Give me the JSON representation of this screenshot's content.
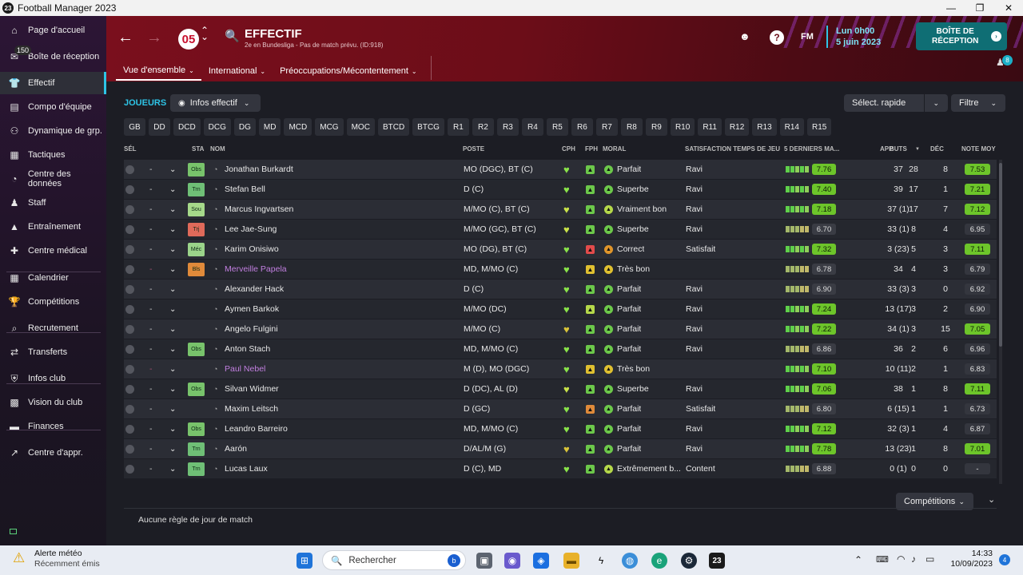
{
  "window": {
    "title": "Football Manager 2023",
    "app_badge": "23"
  },
  "sidebar": {
    "items": [
      {
        "label": "Page d'accueil",
        "icon": "home-icon"
      },
      {
        "label": "Boîte de réception",
        "icon": "inbox-icon",
        "badge": "150"
      },
      {
        "label": "Effectif",
        "icon": "shirt-icon",
        "active": true
      },
      {
        "label": "Compo d'équipe",
        "icon": "clipboard-icon"
      },
      {
        "label": "Dynamique de grp.",
        "icon": "people-icon"
      },
      {
        "label": "Tactiques",
        "icon": "tactics-icon"
      },
      {
        "label": "Centre des données",
        "icon": "data-icon"
      },
      {
        "label": "Staff",
        "icon": "staff-icon"
      },
      {
        "label": "Entraînement",
        "icon": "training-icon"
      },
      {
        "label": "Centre médical",
        "icon": "medical-icon"
      },
      {
        "label": "Calendrier",
        "icon": "calendar-icon"
      },
      {
        "label": "Compétitions",
        "icon": "trophy-icon"
      },
      {
        "label": "Recrutement",
        "icon": "scout-icon"
      },
      {
        "label": "Transferts",
        "icon": "transfer-icon"
      },
      {
        "label": "Infos club",
        "icon": "shield-icon"
      },
      {
        "label": "Vision du club",
        "icon": "vision-icon"
      },
      {
        "label": "Finances",
        "icon": "finance-icon"
      },
      {
        "label": "Centre d'appr.",
        "icon": "development-icon"
      }
    ]
  },
  "header": {
    "title": "EFFECTIF",
    "subtitle": "2e en Bundesliga - Pas de match prévu. (ID:918)",
    "tabs": [
      {
        "label": "Vue d'ensemble"
      },
      {
        "label": "International"
      },
      {
        "label": "Préoccupations/Mécontentement"
      }
    ],
    "fm_label": "FM",
    "date_line1": "Lun 0h00",
    "date_line2": "5 juin 2023",
    "inbox_label_1": "BOÎTE DE",
    "inbox_label_2": "RÉCEPTION",
    "notif_count": "8",
    "club_logo": "05"
  },
  "toolbar": {
    "players_title": "JOUEURS",
    "view_select": "Infos effectif",
    "quick_select": "Sélect. rapide",
    "filter": "Filtre"
  },
  "positions": [
    "GB",
    "DD",
    "DCD",
    "DCG",
    "DG",
    "MD",
    "MCD",
    "MCG",
    "MOC",
    "BTCD",
    "BTCG",
    "R1",
    "R2",
    "R3",
    "R4",
    "R5",
    "R6",
    "R7",
    "R8",
    "R9",
    "R10",
    "R11",
    "R12",
    "R13",
    "R14",
    "R15"
  ],
  "columns": {
    "sel": "SÉL",
    "sta": "STA",
    "name": "NOM",
    "position": "POSTE",
    "cph": "CPH",
    "fph": "FPH",
    "morale": "MORAL",
    "satisfaction": "SATISFACTION TEMPS DE JEU",
    "form": "5 DERNIERS MA...",
    "apps": "APP",
    "goals": "BUTS",
    "assists": "DÉC",
    "avg": "NOTE MOY"
  },
  "players": [
    {
      "sta": "Obs",
      "name": "Jonathan Burkardt",
      "pos": "MO (DGC), BT (C)",
      "morale": "Parfait",
      "sat": "Ravi",
      "form_rating": "7.76",
      "apps": "37",
      "goals": "28",
      "assists": "8",
      "avg": "7.53",
      "avg_good": true,
      "rate_good": true
    },
    {
      "sta": "Trn",
      "name": "Stefan Bell",
      "pos": "D (C)",
      "morale": "Superbe",
      "sat": "Ravi",
      "form_rating": "7.40",
      "apps": "39",
      "goals": "17",
      "assists": "1",
      "avg": "7.21",
      "avg_good": true,
      "rate_good": true
    },
    {
      "sta": "Sou",
      "name": "Marcus Ingvartsen",
      "pos": "M/MO (C), BT (C)",
      "morale": "Vraiment bon",
      "sat": "Ravi",
      "form_rating": "7.18",
      "apps": "37 (1)",
      "goals": "17",
      "assists": "7",
      "avg": "7.12",
      "avg_good": true,
      "rate_good": true
    },
    {
      "sta": "Trj",
      "name": "Lee Jae-Sung",
      "pos": "M/MO (GC), BT (C)",
      "morale": "Superbe",
      "sat": "Ravi",
      "form_rating": "6.70",
      "apps": "33 (1)",
      "goals": "8",
      "assists": "4",
      "avg": "6.95",
      "avg_good": false,
      "rate_good": false
    },
    {
      "sta": "Méc",
      "name": "Karim Onisiwo",
      "pos": "MO (DG), BT (C)",
      "morale": "Correct",
      "sat": "Satisfait",
      "form_rating": "7.32",
      "apps": "3 (23)",
      "goals": "5",
      "assists": "3",
      "avg": "7.11",
      "avg_good": true,
      "rate_good": true
    },
    {
      "sta": "Bls",
      "name": "Merveille Papela",
      "pos": "MD, M/MO (C)",
      "morale": "Très bon",
      "sat": "",
      "form_rating": "6.78",
      "apps": "34",
      "goals": "4",
      "assists": "3",
      "avg": "6.79",
      "avg_good": false,
      "rate_good": false,
      "purple": true
    },
    {
      "sta": "",
      "name": "Alexander Hack",
      "pos": "D (C)",
      "morale": "Parfait",
      "sat": "Ravi",
      "form_rating": "6.90",
      "apps": "33 (3)",
      "goals": "3",
      "assists": "0",
      "avg": "6.92",
      "avg_good": false,
      "rate_good": false
    },
    {
      "sta": "",
      "name": "Aymen Barkok",
      "pos": "M/MO (DC)",
      "morale": "Parfait",
      "sat": "Ravi",
      "form_rating": "7.24",
      "apps": "13 (17)",
      "goals": "3",
      "assists": "2",
      "avg": "6.90",
      "avg_good": false,
      "rate_good": true
    },
    {
      "sta": "",
      "name": "Angelo Fulgini",
      "pos": "M/MO (C)",
      "morale": "Parfait",
      "sat": "Ravi",
      "form_rating": "7.22",
      "apps": "34 (1)",
      "goals": "3",
      "assists": "15",
      "avg": "7.05",
      "avg_good": true,
      "rate_good": true
    },
    {
      "sta": "Obs",
      "name": "Anton Stach",
      "pos": "MD, M/MO (C)",
      "morale": "Parfait",
      "sat": "Ravi",
      "form_rating": "6.86",
      "apps": "36",
      "goals": "2",
      "assists": "6",
      "avg": "6.96",
      "avg_good": false,
      "rate_good": false
    },
    {
      "sta": "",
      "name": "Paul Nebel",
      "pos": "M (D), MO (DGC)",
      "morale": "Très bon",
      "sat": "",
      "form_rating": "7.10",
      "apps": "10 (11)",
      "goals": "2",
      "assists": "1",
      "avg": "6.83",
      "avg_good": false,
      "rate_good": true,
      "purple": true
    },
    {
      "sta": "Obs",
      "name": "Silvan Widmer",
      "pos": "D (DC), AL (D)",
      "morale": "Superbe",
      "sat": "Ravi",
      "form_rating": "7.06",
      "apps": "38",
      "goals": "1",
      "assists": "8",
      "avg": "7.11",
      "avg_good": true,
      "rate_good": true
    },
    {
      "sta": "",
      "name": "Maxim Leitsch",
      "pos": "D (GC)",
      "morale": "Parfait",
      "sat": "Satisfait",
      "form_rating": "6.80",
      "apps": "6 (15)",
      "goals": "1",
      "assists": "1",
      "avg": "6.73",
      "avg_good": false,
      "rate_good": false
    },
    {
      "sta": "Obs",
      "name": "Leandro Barreiro",
      "pos": "MD, M/MO (C)",
      "morale": "Parfait",
      "sat": "Ravi",
      "form_rating": "7.12",
      "apps": "32 (3)",
      "goals": "1",
      "assists": "4",
      "avg": "6.87",
      "avg_good": false,
      "rate_good": true
    },
    {
      "sta": "Trn",
      "name": "Aarón",
      "pos": "D/AL/M (G)",
      "morale": "Parfait",
      "sat": "Ravi",
      "form_rating": "7.78",
      "apps": "13 (23)",
      "goals": "1",
      "assists": "8",
      "avg": "7.01",
      "avg_good": true,
      "rate_good": true
    },
    {
      "sta": "Trn",
      "name": "Lucas Laux",
      "pos": "D (C), MD",
      "morale": "Extrêmement b...",
      "sat": "Content",
      "form_rating": "6.88",
      "apps": "0 (1)",
      "goals": "0",
      "assists": "0",
      "avg": "-",
      "avg_good": false,
      "rate_good": false
    }
  ],
  "footer": {
    "competitions": "Compétitions",
    "no_rule": "Aucune règle de jour de match"
  },
  "taskbar": {
    "weather_title": "Alerte météo",
    "weather_sub": "Récemment émis",
    "search": "Rechercher",
    "time": "14:33",
    "date": "10/09/2023",
    "notif": "4"
  },
  "colors": {
    "accent": "#2ec4e6",
    "header_red": "#7a0f1d",
    "good": "#6dc52a",
    "purple_name": "#c27fe0"
  }
}
